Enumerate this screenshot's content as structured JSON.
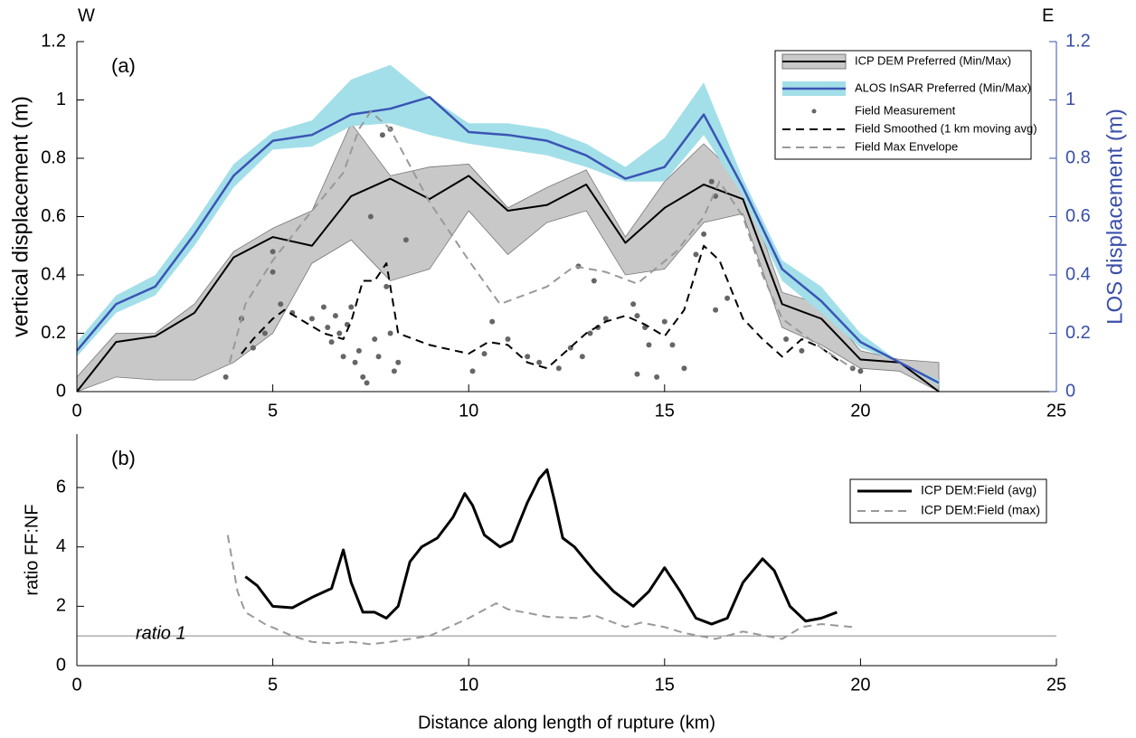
{
  "chart_data": [
    {
      "type": "line",
      "panel_label": "(a)",
      "left_label": "W",
      "right_label": "E",
      "ylabel": "vertical displacement (m)",
      "y2label": "LOS displacement (m)",
      "y2_color": "#3a4fa8",
      "xlim": [
        0,
        25
      ],
      "xticks": [
        0,
        5,
        10,
        15,
        20,
        25
      ],
      "ylim": [
        0,
        1.2
      ],
      "yticks": [
        0,
        0.2,
        0.4,
        0.6,
        0.8,
        1,
        1.2
      ],
      "y2lim": [
        0,
        1.2
      ],
      "y2ticks": [
        0,
        0.2,
        0.4,
        0.6,
        0.8,
        1,
        1.2
      ],
      "legend": "upper right",
      "series": [
        {
          "name": "ICP DEM Preferred (Min/Max)",
          "style": "line",
          "color": "#000000",
          "band_color": "#c8c8c8",
          "line_width": 2,
          "x": [
            0,
            1,
            2,
            3,
            4,
            5,
            6,
            7,
            8,
            9,
            10,
            11,
            12,
            13,
            14,
            15,
            16,
            17,
            18,
            19,
            20,
            21,
            22
          ],
          "values": [
            0,
            0.17,
            0.19,
            0.27,
            0.46,
            0.53,
            0.5,
            0.67,
            0.73,
            0.66,
            0.74,
            0.62,
            0.64,
            0.71,
            0.51,
            0.63,
            0.71,
            0.66,
            0.3,
            0.25,
            0.11,
            0.1,
            0
          ],
          "min": [
            0,
            0.05,
            0.04,
            0.04,
            0.1,
            0.2,
            0.44,
            0.52,
            0.38,
            0.42,
            0.62,
            0.47,
            0.58,
            0.62,
            0.4,
            0.42,
            0.58,
            0.61,
            0.22,
            0.16,
            0.08,
            0.07,
            0
          ],
          "max": [
            0.05,
            0.2,
            0.2,
            0.3,
            0.48,
            0.56,
            0.62,
            0.92,
            0.74,
            0.77,
            0.78,
            0.63,
            0.7,
            0.76,
            0.53,
            0.72,
            0.85,
            0.72,
            0.34,
            0.3,
            0.14,
            0.11,
            0.1
          ]
        },
        {
          "name": "ALOS InSAR Preferred (Min/Max)",
          "style": "line",
          "axis": "y2",
          "color": "#3a55b4",
          "band_color": "#a3dfe9",
          "line_width": 2.5,
          "x": [
            0,
            1,
            2,
            3,
            4,
            5,
            6,
            7,
            8,
            9,
            10,
            11,
            12,
            13,
            14,
            15,
            16,
            17,
            18,
            19,
            20,
            21,
            22
          ],
          "values": [
            0.14,
            0.3,
            0.36,
            0.54,
            0.74,
            0.86,
            0.88,
            0.95,
            0.97,
            1.01,
            0.89,
            0.88,
            0.86,
            0.81,
            0.73,
            0.77,
            0.95,
            0.7,
            0.42,
            0.31,
            0.17,
            0.1,
            0.03
          ],
          "min": [
            0.12,
            0.27,
            0.33,
            0.5,
            0.7,
            0.83,
            0.84,
            0.91,
            0.92,
            0.88,
            0.85,
            0.83,
            0.81,
            0.77,
            0.72,
            0.72,
            0.88,
            0.67,
            0.38,
            0.27,
            0.15,
            0.1,
            0.02
          ],
          "max": [
            0.17,
            0.33,
            0.4,
            0.58,
            0.78,
            0.89,
            0.93,
            1.07,
            1.12,
            1.01,
            0.92,
            0.92,
            0.9,
            0.85,
            0.77,
            0.87,
            1.06,
            0.73,
            0.45,
            0.36,
            0.2,
            0.1,
            0.04
          ]
        },
        {
          "name": "Field Measurement",
          "style": "scatter",
          "color": "#666666",
          "x": [
            3.8,
            4.2,
            4.5,
            4.8,
            5,
            5,
            5.2,
            5.5,
            6,
            6.3,
            6.4,
            6.5,
            6.6,
            6.7,
            6.8,
            6.9,
            7,
            7.1,
            7.2,
            7.3,
            7.4,
            7.5,
            7.6,
            7.7,
            7.8,
            7.9,
            8,
            8,
            8.1,
            8.2,
            8.4,
            10.1,
            10.4,
            10.6,
            11,
            11.5,
            11.8,
            12.3,
            12.6,
            12.8,
            12.9,
            13.1,
            13.2,
            13.3,
            13.5,
            14.2,
            14.3,
            14.3,
            14.5,
            14.6,
            14.8,
            15,
            15.2,
            15.5,
            15.8,
            16,
            16.2,
            16.3,
            16.3,
            16.6,
            18.1,
            18.5,
            19.8,
            20
          ],
          "values": [
            0.05,
            0.25,
            0.15,
            0.2,
            0.48,
            0.41,
            0.3,
            0.27,
            0.25,
            0.29,
            0.22,
            0.17,
            0.26,
            0.2,
            0.12,
            0.23,
            0.29,
            0.1,
            0.14,
            0.05,
            0.03,
            0.6,
            0.18,
            0.12,
            0.88,
            0.36,
            0.9,
            0.2,
            0.07,
            0.1,
            0.52,
            0.07,
            0.13,
            0.24,
            0.18,
            0.12,
            0.1,
            0.08,
            0.15,
            0.43,
            0.12,
            0.2,
            0.38,
            0.22,
            0.25,
            0.3,
            0.26,
            0.06,
            0.22,
            0.16,
            0.05,
            0.24,
            0.16,
            0.08,
            0.47,
            0.54,
            0.72,
            0.67,
            0.28,
            0.32,
            0.18,
            0.14,
            0.08,
            0.07
          ]
        },
        {
          "name": "Field Smoothed (1 km moving avg)",
          "style": "dashed",
          "color": "#000000",
          "line_width": 2,
          "x": [
            4.2,
            4.5,
            5,
            5.3,
            5.8,
            6.3,
            6.8,
            7,
            7.3,
            7.6,
            7.9,
            8.2,
            8.6,
            9,
            10,
            10.5,
            11,
            11.5,
            12,
            12.5,
            13,
            13.5,
            14,
            14.5,
            15,
            15.5,
            16,
            16.4,
            17,
            17.5,
            18,
            18.5,
            19,
            19.5
          ],
          "values": [
            0.13,
            0.18,
            0.25,
            0.28,
            0.24,
            0.2,
            0.18,
            0.24,
            0.38,
            0.38,
            0.44,
            0.2,
            0.18,
            0.16,
            0.13,
            0.17,
            0.16,
            0.1,
            0.08,
            0.14,
            0.2,
            0.24,
            0.26,
            0.23,
            0.19,
            0.28,
            0.5,
            0.45,
            0.25,
            0.18,
            0.12,
            0.18,
            0.15,
            0.1
          ]
        },
        {
          "name": "Field Max Envelope",
          "style": "dashed",
          "color": "#999999",
          "line_width": 2,
          "x": [
            3.9,
            4.3,
            5,
            6,
            6.8,
            7.2,
            7.5,
            8,
            9,
            10,
            10.8,
            12,
            12.7,
            13.5,
            14.3,
            15.3,
            16,
            16.4,
            17,
            17.5,
            18,
            19,
            19.8
          ],
          "values": [
            0.1,
            0.3,
            0.45,
            0.62,
            0.75,
            0.9,
            0.96,
            0.9,
            0.65,
            0.45,
            0.3,
            0.36,
            0.43,
            0.41,
            0.37,
            0.48,
            0.6,
            0.72,
            0.6,
            0.4,
            0.25,
            0.15,
            0.08
          ]
        }
      ]
    },
    {
      "type": "line",
      "panel_label": "(b)",
      "ylabel": "ratio FF:NF",
      "xlabel": "Distance along length of rupture (km)",
      "xlim": [
        0,
        25
      ],
      "xticks": [
        0,
        5,
        10,
        15,
        20,
        25
      ],
      "ylim": [
        0,
        7.8
      ],
      "yticks": [
        0,
        2,
        4,
        6
      ],
      "legend": "upper right",
      "reference_line": {
        "value": 1,
        "label": "ratio 1"
      },
      "series": [
        {
          "name": "ICP DEM:Field (avg)",
          "style": "line",
          "color": "#000000",
          "line_width": 3,
          "x": [
            4.3,
            4.6,
            5,
            5.5,
            6,
            6.5,
            6.8,
            7,
            7.3,
            7.6,
            7.9,
            8.2,
            8.5,
            8.8,
            9.2,
            9.6,
            9.9,
            10.1,
            10.4,
            10.8,
            11.1,
            11.5,
            11.8,
            12,
            12.2,
            12.4,
            12.7,
            13.2,
            13.7,
            14.2,
            14.6,
            15,
            15.4,
            15.8,
            16.2,
            16.6,
            17,
            17.5,
            17.8,
            18.2,
            18.6,
            19,
            19.4
          ],
          "values": [
            3,
            2.7,
            2,
            1.95,
            2.3,
            2.6,
            3.9,
            2.8,
            1.8,
            1.8,
            1.6,
            2,
            3.5,
            4,
            4.3,
            5,
            5.8,
            5.4,
            4.4,
            4,
            4.2,
            5.5,
            6.3,
            6.6,
            5.5,
            4.3,
            4,
            3.2,
            2.5,
            2,
            2.5,
            3.3,
            2.5,
            1.6,
            1.4,
            1.6,
            2.8,
            3.6,
            3.2,
            2,
            1.5,
            1.6,
            1.8
          ]
        },
        {
          "name": "ICP DEM:Field (max)",
          "style": "dashed",
          "color": "#999999",
          "line_width": 2,
          "x": [
            3.85,
            4.1,
            4.3,
            4.8,
            5.5,
            6,
            6.5,
            7,
            7.5,
            8,
            9,
            10,
            10.7,
            11,
            12,
            12.8,
            13.2,
            14,
            14.4,
            15,
            15.5,
            16.3,
            17,
            18,
            18.5,
            19,
            19.8
          ],
          "values": [
            4.4,
            2.5,
            1.8,
            1.4,
            1,
            0.8,
            0.75,
            0.8,
            0.72,
            0.8,
            1,
            1.6,
            2.1,
            1.9,
            1.65,
            1.6,
            1.7,
            1.3,
            1.45,
            1.3,
            1.1,
            0.9,
            1.15,
            0.9,
            1.3,
            1.4,
            1.3
          ]
        }
      ]
    }
  ]
}
